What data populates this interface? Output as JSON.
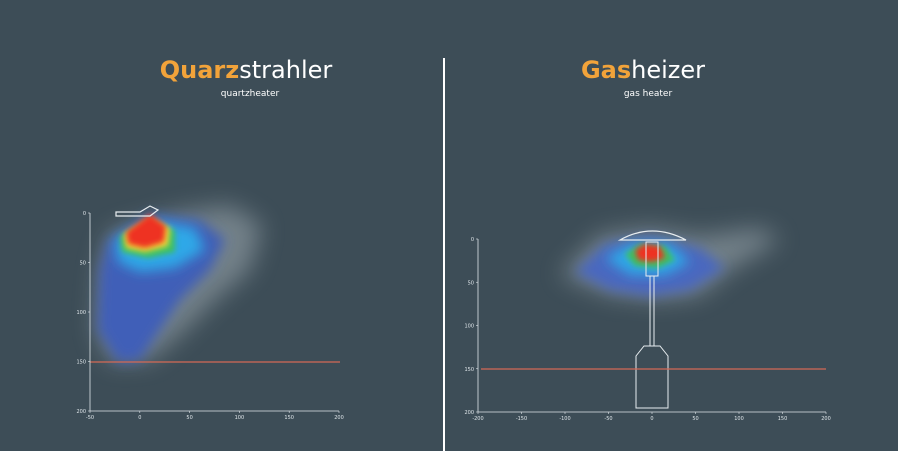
{
  "panels": [
    {
      "title_accent": "Quarz",
      "title_rest": "strahler",
      "subtitle": "quartzheater",
      "yticks": [
        0,
        50,
        100,
        150,
        200
      ],
      "xticks": [
        -50,
        0,
        50,
        100,
        150,
        200
      ]
    },
    {
      "title_accent": "Gas",
      "title_rest": "heizer",
      "subtitle": "gas heater",
      "yticks": [
        0,
        50,
        100,
        150,
        200
      ],
      "xticks": [
        -200,
        -150,
        -100,
        -50,
        0,
        50,
        100,
        150,
        200
      ]
    }
  ]
}
